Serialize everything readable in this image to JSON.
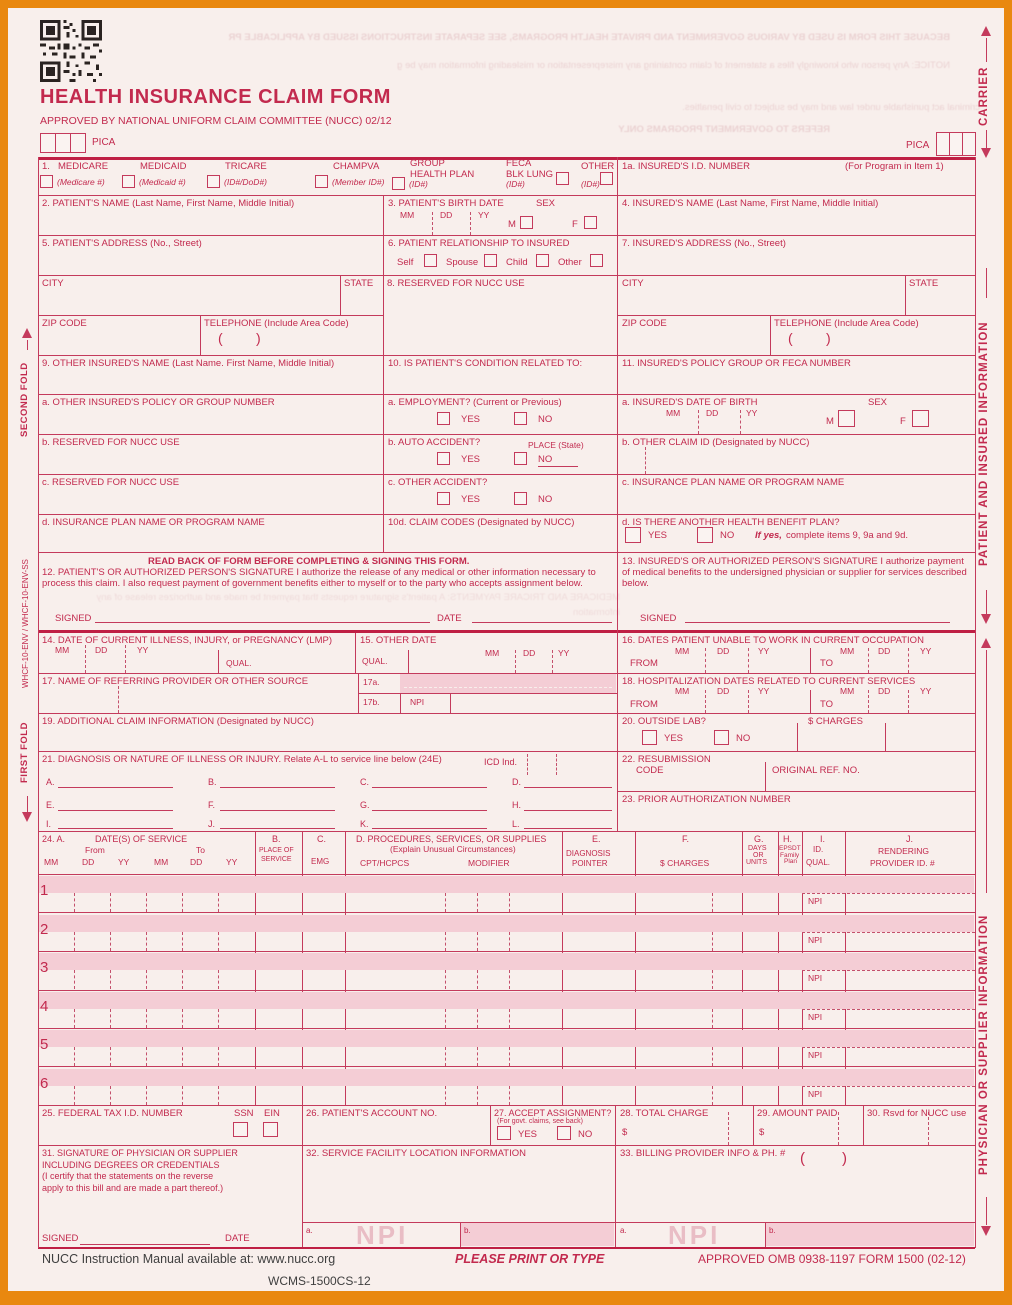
{
  "page": {
    "title": "HEALTH INSURANCE CLAIM FORM",
    "subtitle": "APPROVED BY NATIONAL UNIFORM CLAIM COMMITTEE (NUCC) 02/12",
    "pica": "PICA"
  },
  "margins": {
    "carrier": "CARRIER",
    "patient_insured": "PATIENT AND INSURED INFORMATION",
    "physician_supplier": "PHYSICIAN OR SUPPLIER INFORMATION",
    "second_fold": "SECOND FOLD",
    "first_fold": "FIRST FOLD",
    "env_code": "WHCF-10-ENV / WHCF-10-ENV-SS"
  },
  "common": {
    "yes": "YES",
    "no": "NO",
    "mm": "MM",
    "dd": "DD",
    "yy": "YY",
    "from": "FROM",
    "to": "TO",
    "qual": "QUAL.",
    "npi": "NPI",
    "signed": "SIGNED",
    "date": "DATE",
    "city": "CITY",
    "state": "STATE",
    "zip": "ZIP CODE",
    "telephone": "TELEPHONE (Include Area Code)",
    "m": "M",
    "f": "F",
    "sex": "SEX",
    "paren_open": "(",
    "paren_close": ")"
  },
  "b1": {
    "num": "1.",
    "items": [
      {
        "n": "MEDICARE",
        "s": "(Medicare #)"
      },
      {
        "n": "MEDICAID",
        "s": "(Medicaid #)"
      },
      {
        "n": "TRICARE",
        "s": "(ID#/DoD#)"
      },
      {
        "n": "CHAMPVA",
        "s": "(Member ID#)"
      },
      {
        "n": "GROUP\nHEALTH PLAN",
        "s": "(ID#)"
      },
      {
        "n": "FECA\nBLK LUNG",
        "s": "(ID#)"
      },
      {
        "n": "OTHER",
        "s": "(ID#)"
      }
    ]
  },
  "b1a": {
    "label": "1a. INSURED'S I.D. NUMBER",
    "note": "(For Program in Item 1)"
  },
  "b2": "2. PATIENT'S NAME (Last Name, First Name, Middle Initial)",
  "b3": "3. PATIENT'S BIRTH DATE",
  "b4": "4. INSURED'S NAME (Last Name, First Name, Middle Initial)",
  "b5": "5. PATIENT'S ADDRESS (No., Street)",
  "b6": {
    "label": "6. PATIENT RELATIONSHIP TO INSURED",
    "self": "Self",
    "spouse": "Spouse",
    "child": "Child",
    "other": "Other"
  },
  "b7": "7. INSURED'S ADDRESS (No., Street)",
  "b8": "8. RESERVED FOR NUCC USE",
  "b9": {
    "label": "9. OTHER INSURED'S NAME (Last Name. First Name, Middle Initial)",
    "a": "a. OTHER INSURED'S POLICY OR GROUP NUMBER",
    "b": "b. RESERVED FOR NUCC USE",
    "c": "c. RESERVED FOR NUCC USE",
    "d": "d. INSURANCE PLAN NAME OR PROGRAM NAME"
  },
  "b10": {
    "label": "10. IS PATIENT'S CONDITION RELATED TO:",
    "a": "a. EMPLOYMENT? (Current or Previous)",
    "b": "b. AUTO ACCIDENT?",
    "place": "PLACE (State)",
    "c": "c. OTHER ACCIDENT?",
    "d": "10d. CLAIM CODES (Designated by NUCC)"
  },
  "b11": {
    "label": "11. INSURED'S POLICY GROUP OR FECA NUMBER",
    "a": "a. INSURED'S DATE OF BIRTH",
    "b": "b. OTHER CLAIM ID (Designated by NUCC)",
    "c": "c. INSURANCE PLAN NAME OR PROGRAM NAME",
    "d": "d. IS THERE ANOTHER HEALTH BENEFIT PLAN?",
    "if_yes": "If yes,",
    "if_yes_rest": " complete items 9, 9a and 9d."
  },
  "readback": "READ BACK OF FORM BEFORE COMPLETING & SIGNING THIS FORM.",
  "b12": "12. PATIENT'S OR AUTHORIZED PERSON'S SIGNATURE I authorize the release of any medical or other information necessary to process this claim. I also request payment of government benefits either to myself or to the party who accepts assignment below.",
  "b13": "13. INSURED'S OR AUTHORIZED PERSON'S SIGNATURE I authorize payment of medical benefits to the undersigned physician or supplier for services described below.",
  "b14": "14. DATE OF CURRENT ILLNESS, INJURY, or PREGNANCY (LMP)",
  "b15": "15. OTHER DATE",
  "b16": "16. DATES PATIENT UNABLE TO WORK IN CURRENT OCCUPATION",
  "b17": {
    "label": "17. NAME OF REFERRING PROVIDER OR OTHER SOURCE",
    "a": "17a.",
    "b": "17b."
  },
  "b18": "18. HOSPITALIZATION DATES RELATED TO CURRENT SERVICES",
  "b19": "19. ADDITIONAL CLAIM INFORMATION (Designated by NUCC)",
  "b20": {
    "label": "20. OUTSIDE LAB?",
    "charges": "$ CHARGES"
  },
  "b21": {
    "label": "21. DIAGNOSIS OR NATURE OF ILLNESS OR INJURY. Relate A-L to service line below (24E)",
    "icd": "ICD Ind.",
    "letters": [
      "A.",
      "B.",
      "C.",
      "D.",
      "E.",
      "F.",
      "G.",
      "H.",
      "I.",
      "J.",
      "K.",
      "L."
    ]
  },
  "b22": {
    "label": "22. RESUBMISSION",
    "code": "CODE",
    "ref": "ORIGINAL REF. NO."
  },
  "b23": "23. PRIOR AUTHORIZATION NUMBER",
  "t24": {
    "a": "24. A.",
    "dates": "DATE(S) OF SERVICE",
    "from": "From",
    "to": "To",
    "b": "B.",
    "place": "PLACE OF",
    "service": "SERVICE",
    "c": "C.",
    "emg": "EMG",
    "d": "D. PROCEDURES, SERVICES, OR SUPPLIES",
    "d2": "(Explain Unusual Circumstances)",
    "cpt": "CPT/HCPCS",
    "mod": "MODIFIER",
    "e": "E.",
    "diag": "DIAGNOSIS",
    "pointer": "POINTER",
    "f": "F.",
    "charges": "$ CHARGES",
    "g": "G.",
    "days": "DAYS",
    "or": "OR",
    "units": "UNITS",
    "h": "H.",
    "epsdt": "EPSDT",
    "family": "Family",
    "plan": "Plan",
    "i": "I.",
    "id": "ID.",
    "qual": "QUAL.",
    "j": "J.",
    "rendering": "RENDERING",
    "provider": "PROVIDER ID. #",
    "rows": [
      "1",
      "2",
      "3",
      "4",
      "5",
      "6"
    ]
  },
  "b25": {
    "label": "25. FEDERAL TAX I.D. NUMBER",
    "ssn": "SSN",
    "ein": "EIN"
  },
  "b26": "26. PATIENT'S ACCOUNT NO.",
  "b27": {
    "label": "27. ACCEPT ASSIGNMENT?",
    "note": "(For govt. claims, see back)"
  },
  "b28": {
    "label": "28. TOTAL CHARGE",
    "dollar": "$"
  },
  "b29": {
    "label": "29. AMOUNT PAID",
    "dollar": "$"
  },
  "b30": "30. Rsvd for NUCC use",
  "b31": "31. SIGNATURE OF PHYSICIAN OR SUPPLIER\nINCLUDING DEGREES OR CREDENTIALS\n(I certify that the statements on the reverse\napply to this bill and are made a part thereof.)",
  "b32": {
    "label": "32. SERVICE FACILITY LOCATION INFORMATION",
    "a": "a.",
    "b": "b."
  },
  "b33": {
    "label": "33. BILLING PROVIDER INFO & PH. #",
    "a": "a.",
    "b": "b."
  },
  "footer": {
    "left": "NUCC Instruction Manual available at: www.nucc.org",
    "center": "PLEASE PRINT OR TYPE",
    "right": "APPROVED OMB 0938-1197 FORM 1500 (02-12)",
    "code": "WCMS-1500CS-12"
  },
  "colors": {
    "accent_red": "#c22a4e",
    "shade_pink": "#f4cdd5",
    "frame_orange": "#e9880f"
  },
  "bleed": [
    "BECAUSE THIS FORM IS USED BY VARIOUS GOVERNMENT AND PRIVATE HEALTH PROGRAMS, SEE SEPARATE INSTRUCTIONS ISSUED BY APPLICABLE PR",
    "NOTICE: Any person who knowingly files a statement of claim containing any misrepresentation or misleading information may be g",
    "criminal act punishable under law and may be subject to civil penalties.",
    "REFERS TO GOVERNMENT PROGRAMS ONLY",
    "MEDICARE AND TRICARE PAYMENTS: A patient's signature requests that payment be made and authorizes release of any information"
  ]
}
